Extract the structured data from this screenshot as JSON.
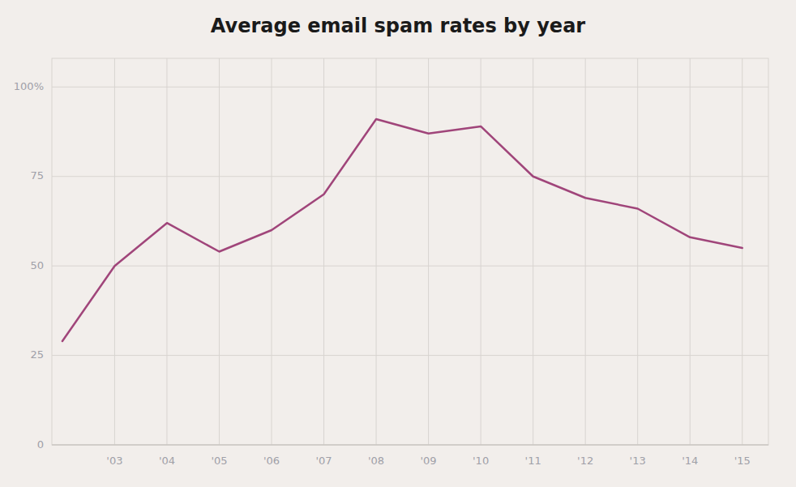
{
  "chart_data": {
    "type": "line",
    "title": "Average email spam rates by year",
    "x": [
      2002,
      2003,
      2004,
      2005,
      2006,
      2007,
      2008,
      2009,
      2010,
      2011,
      2012,
      2013,
      2014,
      2015
    ],
    "values": [
      29,
      50,
      62,
      54,
      60,
      70,
      91,
      87,
      89,
      75,
      69,
      66,
      58,
      55
    ],
    "color": "#a0457a",
    "xlim": [
      2001.8,
      2015.5
    ],
    "xticks": [
      {
        "value": 2003,
        "label": "'03"
      },
      {
        "value": 2004,
        "label": "'04"
      },
      {
        "value": 2005,
        "label": "'05"
      },
      {
        "value": 2006,
        "label": "'06"
      },
      {
        "value": 2007,
        "label": "'07"
      },
      {
        "value": 2008,
        "label": "'08"
      },
      {
        "value": 2009,
        "label": "'09"
      },
      {
        "value": 2010,
        "label": "'10"
      },
      {
        "value": 2011,
        "label": "'11"
      },
      {
        "value": 2012,
        "label": "'12"
      },
      {
        "value": 2013,
        "label": "'13"
      },
      {
        "value": 2014,
        "label": "'14"
      },
      {
        "value": 2015,
        "label": "'15"
      }
    ],
    "ylim": [
      0,
      108
    ],
    "yticks": [
      0,
      25,
      50,
      75,
      {
        "value": 100,
        "label": "100%"
      }
    ],
    "grid": true
  }
}
